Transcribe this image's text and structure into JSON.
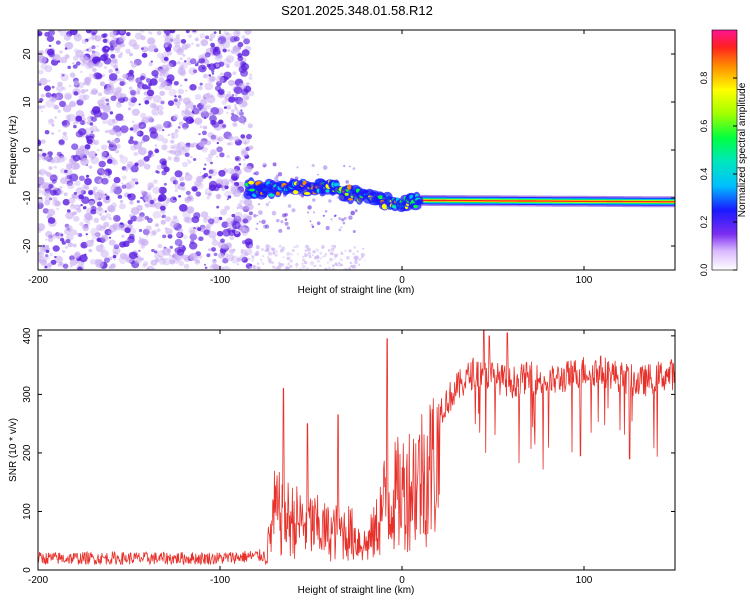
{
  "title": "S201.2025.348.01.58.R12",
  "colors": {
    "axis": "#000000",
    "line": "#e8302a",
    "speckle_dark": "#5b1ee0",
    "speckle_light": "#c9aef2"
  },
  "chart_data": [
    {
      "type": "heatmap",
      "title": "S201.2025.348.01.58.R12",
      "xlabel": "Height of straight line (km)",
      "ylabel": "Frequency (Hz)",
      "xlim": [
        -200,
        150
      ],
      "ylim": [
        -25,
        25
      ],
      "x_ticks": [
        -200,
        -100,
        0,
        100
      ],
      "y_ticks": [
        20,
        10,
        0,
        -10,
        -20
      ],
      "x_tick_labels": [
        "-200",
        "-100",
        "0",
        "100"
      ],
      "y_tick_labels": [
        "20",
        "10",
        "0",
        "-10",
        "-20"
      ],
      "colorbar": {
        "label": "Normalized spectral amplitude",
        "range": [
          0,
          1
        ],
        "ticks": [
          "0.0",
          "0.2",
          "0.4",
          "0.6",
          "0.8"
        ],
        "tick_values": [
          0,
          0.2,
          0.4,
          0.6,
          0.8
        ]
      },
      "noise_region_x": [
        -200,
        -85
      ],
      "signal_ridge": {
        "x": [
          -85,
          -70,
          -60,
          -50,
          -40,
          -30,
          -20,
          -10,
          0,
          10,
          150
        ],
        "frequency": [
          -8,
          -8.5,
          -7.5,
          -8,
          -7.8,
          -9,
          -9.5,
          -10.5,
          -11,
          -10.5,
          -10.8
        ]
      }
    },
    {
      "type": "line",
      "xlabel": "Height of straight line (km)",
      "ylabel": "SNR (10 * v/v)",
      "xlim": [
        -200,
        150
      ],
      "ylim": [
        0,
        410
      ],
      "x_ticks": [
        -200,
        -100,
        0,
        100
      ],
      "y_ticks": [
        0,
        100,
        200,
        300,
        400
      ],
      "x_tick_labels": [
        "-200",
        "-100",
        "0",
        "100"
      ],
      "y_tick_labels": [
        "0",
        "100",
        "200",
        "300",
        "400"
      ],
      "envelope": {
        "x": [
          -200,
          -100,
          -75,
          -70,
          -60,
          -50,
          -40,
          -30,
          -20,
          -15,
          -10,
          0,
          10,
          20,
          30,
          40,
          50,
          60,
          70,
          80,
          90,
          100,
          110,
          120,
          130,
          140,
          150
        ],
        "snr": [
          20,
          20,
          25,
          140,
          120,
          110,
          90,
          95,
          60,
          90,
          160,
          190,
          230,
          270,
          310,
          340,
          330,
          320,
          330,
          320,
          330,
          340,
          340,
          330,
          320,
          330,
          335
        ]
      },
      "spikes": {
        "x": [
          -65,
          -52,
          -35,
          -8,
          45,
          48,
          58,
          98,
          125
        ],
        "snr": [
          310,
          250,
          265,
          395,
          410,
          400,
          405,
          195,
          190
        ]
      }
    }
  ]
}
